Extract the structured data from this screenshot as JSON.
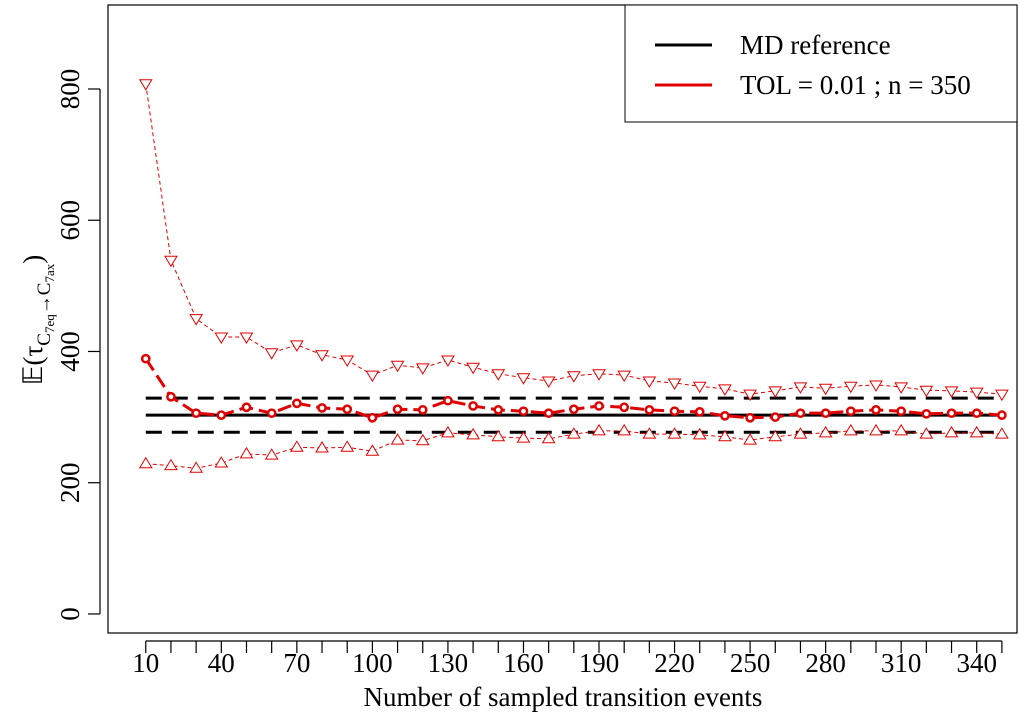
{
  "chart_data": {
    "type": "line",
    "xlabel": "Number of sampled transition events",
    "ylabel": {
      "main": "𝔼(τ",
      "sub": [
        "C",
        "7eq",
        "→C",
        "7ax"
      ],
      "close": ")"
    },
    "x": [
      10,
      20,
      30,
      40,
      50,
      60,
      70,
      80,
      90,
      100,
      110,
      120,
      130,
      140,
      150,
      160,
      170,
      180,
      190,
      200,
      210,
      220,
      230,
      240,
      250,
      260,
      270,
      280,
      290,
      300,
      310,
      320,
      330,
      340,
      350
    ],
    "reference": {
      "name": "MD reference",
      "color": "#000000",
      "value": 303,
      "lower": 277,
      "upper": 329
    },
    "series": [
      {
        "name": "TOL = 0.01 ; n = 350",
        "color": "#e00000",
        "values": [
          389,
          331,
          306,
          303,
          315,
          306,
          321,
          314,
          312,
          299,
          312,
          311,
          325,
          317,
          311,
          309,
          306,
          312,
          317,
          315,
          311,
          309,
          308,
          302,
          299,
          300,
          306,
          306,
          309,
          311,
          309,
          305,
          306,
          306,
          303
        ],
        "upper": [
          808,
          539,
          450,
          422,
          422,
          398,
          410,
          395,
          387,
          364,
          379,
          375,
          387,
          376,
          366,
          360,
          355,
          363,
          366,
          364,
          355,
          352,
          347,
          343,
          335,
          340,
          346,
          344,
          347,
          349,
          346,
          341,
          340,
          338,
          335
        ],
        "lower": [
          229,
          226,
          222,
          230,
          244,
          242,
          254,
          253,
          254,
          248,
          265,
          264,
          276,
          273,
          270,
          268,
          267,
          274,
          279,
          279,
          274,
          274,
          273,
          270,
          265,
          270,
          274,
          276,
          279,
          279,
          279,
          274,
          276,
          276,
          274
        ]
      }
    ],
    "xlim": [
      -5,
      356
    ],
    "ylim": [
      -29,
      928
    ],
    "xticks": [
      10,
      40,
      70,
      100,
      130,
      160,
      190,
      220,
      250,
      280,
      310,
      340
    ],
    "xminor_ticks": [
      20,
      30,
      50,
      60,
      80,
      90,
      110,
      120,
      140,
      150,
      170,
      180,
      200,
      210,
      230,
      240,
      260,
      270,
      290,
      300,
      320,
      330,
      350
    ],
    "yticks": [
      0,
      200,
      400,
      600,
      800
    ],
    "legend": "top-right"
  }
}
